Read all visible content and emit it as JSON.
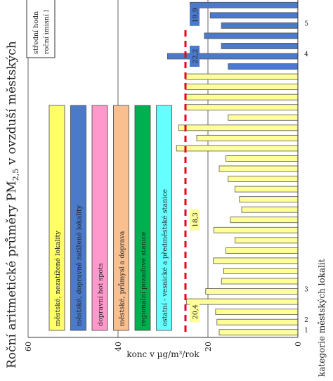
{
  "chart_data": {
    "type": "bar",
    "title_prefix": "Roční aritmetické průměry PM",
    "title_sub": "2,5",
    "title_suffix": " v ovzduší městských",
    "ylabel": "konc v µg/m³/rok",
    "xlabel": "kategorie městských lokalit",
    "ylim": [
      0,
      60
    ],
    "yticks": [
      0,
      20,
      40,
      60
    ],
    "grid": true,
    "category_labels": [
      {
        "index": 0,
        "text": "1"
      },
      {
        "index": 1,
        "text": "2"
      },
      {
        "index": 4,
        "text": "3"
      },
      {
        "index": 27,
        "text": "4"
      },
      {
        "index": 30,
        "text": "5"
      }
    ],
    "values": [
      17.5,
      18,
      18.3,
      24.8,
      20.5,
      17,
      16.5,
      18.8,
      16,
      14,
      18.7,
      15,
      12.5,
      13,
      14,
      15.5,
      17.5,
      16,
      27,
      22.5,
      26.5,
      15.5,
      25,
      25,
      25,
      25,
      15.5,
      29,
      17,
      20.8,
      17,
      19.5,
      24
    ],
    "colors": [
      "#ffff99",
      "#ffff99",
      "#ffff99",
      "#ffff99",
      "#ffff99",
      "#ffff99",
      "#ffff99",
      "#ffff99",
      "#ffff99",
      "#ffff99",
      "#ffff99",
      "#ffff99",
      "#ffff99",
      "#ffff99",
      "#ffff99",
      "#ffff99",
      "#ffff99",
      "#ffff99",
      "#ffff99",
      "#ffff99",
      "#ffff99",
      "#ffff99",
      "#ffff99",
      "#ffff99",
      "#ffff99",
      "#ffff99",
      "#4a7ac9",
      "#4a7ac9",
      "#4a7ac9",
      "#4a7ac9",
      "#4a7ac9",
      "#4a7ac9",
      "#4a7ac9"
    ],
    "reference_line": {
      "value": 25,
      "color": "#e8001c"
    },
    "value_labels": [
      {
        "text": "20,4",
        "value": 20.4,
        "index": 2,
        "box_color": "#ffff99"
      },
      {
        "text": "18,3",
        "value": 18.3,
        "index": 11,
        "box_color": "#ffff99"
      },
      {
        "text": "22,2",
        "value": 22.2,
        "index": 27,
        "box_color": "#4a7ac9"
      },
      {
        "text": "19,9",
        "value": 19.9,
        "index": 31,
        "box_color": "#4a7ac9"
      }
    ],
    "legend": {
      "position": "top-left",
      "items": [
        {
          "label": "městské, nezatížené lokality",
          "color": "#ffff66"
        },
        {
          "label": "městské, dopravně zatížené lokality",
          "color": "#4a7ac9"
        },
        {
          "label": "dopravní hot spots",
          "color": "#ff99cc"
        },
        {
          "label": "městské, průmysl a doprava",
          "color": "#fabf8f"
        },
        {
          "label": "regionální pozaďové stanice",
          "color": "#00b050"
        },
        {
          "label": "ostatní - vesnické a předměstské stanice",
          "color": "#66ffff"
        }
      ]
    },
    "line_legend": [
      "střední hodn",
      "roční imisní l"
    ]
  }
}
